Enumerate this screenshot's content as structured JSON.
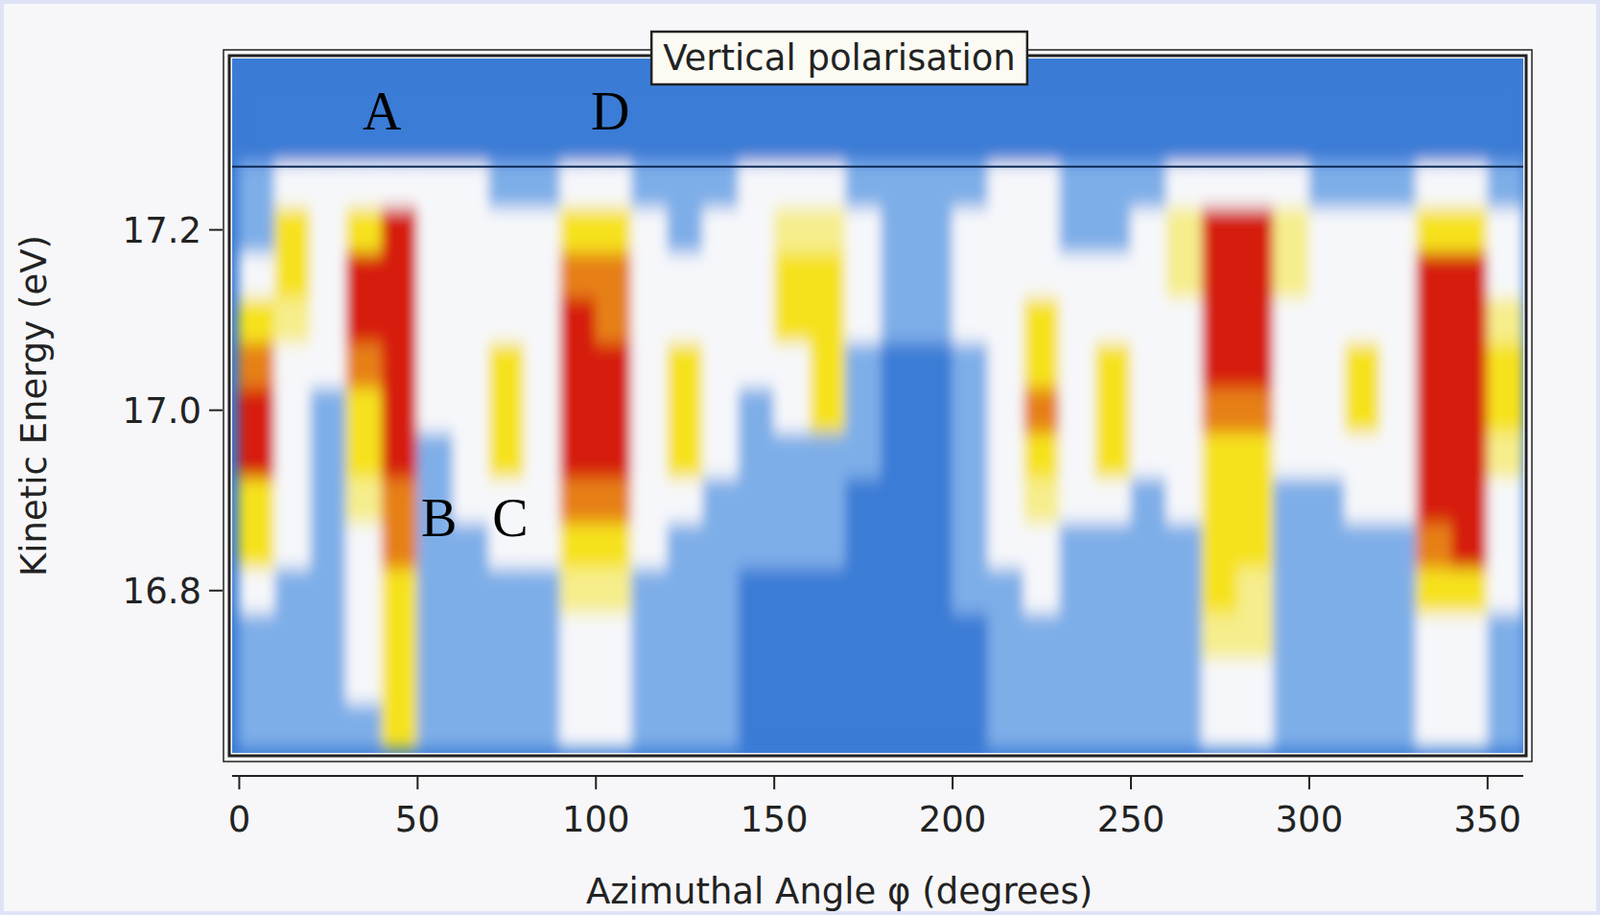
{
  "chart_data": {
    "type": "heatmap",
    "title": "Vertical polarisation",
    "x_label": "Azimuthal Angle φ (degrees)",
    "y_label": "Kinetic Energy (eV)",
    "xlim": [
      -2,
      360
    ],
    "ylim": [
      16.62,
      17.39
    ],
    "xticks": [
      0,
      50,
      100,
      150,
      200,
      250,
      300,
      350
    ],
    "yticks": [
      16.8,
      {
        "value": 17,
        "label": "17.0"
      },
      17.2
    ],
    "zlim": [
      0,
      3
    ],
    "hline": 17.27,
    "x": [
      5,
      15,
      25,
      35,
      45,
      55,
      65,
      75,
      85,
      95,
      105,
      115,
      125,
      135,
      145,
      155,
      165,
      175,
      185,
      195,
      205,
      215,
      225,
      235,
      245,
      255,
      265,
      275,
      285,
      295,
      305,
      315,
      325,
      335,
      345,
      355
    ],
    "y": [
      16.65,
      16.7,
      16.75,
      16.8,
      16.85,
      16.9,
      16.95,
      17.0,
      17.05,
      17.1,
      17.15,
      17.2,
      17.25,
      17.3,
      17.35
    ],
    "values": [
      [
        0.5,
        0.5,
        0.5,
        1,
        2,
        2,
        3,
        3,
        2.5,
        2,
        1,
        0.5,
        0.5,
        0,
        0
      ],
      [
        0.5,
        0.5,
        0.5,
        0.5,
        1,
        1,
        1,
        1,
        1,
        1.5,
        2,
        2,
        1,
        0,
        0
      ],
      [
        0.5,
        0.5,
        0.5,
        0.5,
        0.5,
        0.5,
        0.5,
        0.5,
        1,
        1,
        1,
        1,
        1,
        0,
        0
      ],
      [
        0.5,
        1,
        1,
        1,
        1,
        1.5,
        2,
        2,
        2.5,
        3,
        3,
        2,
        1,
        0,
        0
      ],
      [
        2,
        2,
        2,
        2,
        2.5,
        2.5,
        3,
        3,
        3,
        3,
        3,
        3,
        1,
        0,
        0
      ],
      [
        0.5,
        0.5,
        0.5,
        0.5,
        0.5,
        0.5,
        0.5,
        1,
        1,
        1,
        1,
        1,
        1,
        0,
        0
      ],
      [
        0.5,
        0.5,
        0.5,
        0.5,
        0.5,
        1,
        1,
        1,
        1,
        1,
        1,
        1,
        1,
        0,
        0
      ],
      [
        0.5,
        0.5,
        0.5,
        0.5,
        1,
        1,
        2,
        2,
        2,
        1,
        1,
        1,
        0.5,
        0,
        0
      ],
      [
        0.5,
        0.5,
        0.5,
        0.5,
        1,
        1,
        1,
        1,
        1,
        1,
        1,
        1,
        0.5,
        0,
        0
      ],
      [
        1,
        1,
        1,
        1.5,
        2,
        2.5,
        3,
        3,
        3,
        3,
        2.5,
        2,
        1,
        0,
        0
      ],
      [
        1,
        1,
        1,
        1.5,
        2,
        2.5,
        3,
        3,
        3,
        2.5,
        2.5,
        2,
        1,
        0,
        0
      ],
      [
        0.5,
        0.5,
        0.5,
        0.5,
        1,
        1,
        1,
        1,
        1,
        1,
        1,
        1,
        0.5,
        0,
        0
      ],
      [
        0.5,
        0.5,
        0.5,
        0.5,
        0.5,
        1,
        2,
        2,
        2,
        1,
        1,
        0.5,
        0.5,
        0,
        0
      ],
      [
        0.5,
        0.5,
        0.5,
        0.5,
        0.5,
        0.5,
        1,
        1,
        1,
        1,
        1,
        1,
        0.5,
        0,
        0
      ],
      [
        0,
        0,
        0,
        0,
        0.5,
        0.5,
        0.5,
        0.5,
        1,
        1,
        1,
        1,
        1,
        0,
        0
      ],
      [
        0,
        0,
        0,
        0,
        0.5,
        0.5,
        0.5,
        1,
        1,
        2,
        2,
        1.5,
        1,
        0,
        0
      ],
      [
        0,
        0,
        0,
        0,
        0.5,
        0.5,
        0.5,
        2,
        2,
        2,
        2,
        1.5,
        1,
        0,
        0
      ],
      [
        0,
        0,
        0,
        0,
        0,
        0,
        0.5,
        0.5,
        0.5,
        1,
        1,
        1,
        0.5,
        0,
        0
      ],
      [
        0,
        0,
        0,
        0,
        0,
        0,
        0,
        0,
        0,
        0.5,
        0.5,
        0.5,
        0.5,
        0,
        0
      ],
      [
        0,
        0,
        0,
        0,
        0,
        0,
        0,
        0,
        0,
        0.5,
        0.5,
        0.5,
        0.5,
        0,
        0
      ],
      [
        0,
        0,
        0,
        0.5,
        0.5,
        0.5,
        0.5,
        0.5,
        0.5,
        1,
        1,
        1,
        0.5,
        0,
        0
      ],
      [
        0.5,
        0.5,
        0.5,
        0.5,
        1,
        1,
        1,
        1,
        1,
        1,
        1,
        1,
        1,
        0,
        0
      ],
      [
        0.5,
        0.5,
        0.5,
        1,
        1,
        1.5,
        2,
        2.5,
        2,
        2,
        1,
        1,
        1,
        0,
        0
      ],
      [
        0.5,
        0.5,
        0.5,
        0.5,
        0.5,
        1,
        1,
        1,
        1,
        1,
        1,
        0.5,
        0.5,
        0,
        0
      ],
      [
        0.5,
        0.5,
        0.5,
        0.5,
        0.5,
        1,
        2,
        2,
        2,
        1,
        1,
        0.5,
        0.5,
        0,
        0
      ],
      [
        0.5,
        0.5,
        0.5,
        0.5,
        0.5,
        0.5,
        1,
        1,
        1,
        1,
        1,
        1,
        0.5,
        0,
        0
      ],
      [
        0.5,
        0.5,
        0.5,
        0.5,
        0.5,
        1,
        1,
        1,
        1,
        1,
        1.5,
        1.5,
        1,
        0,
        0
      ],
      [
        1,
        1,
        1.5,
        2,
        2,
        2,
        2,
        2.5,
        3,
        3,
        3,
        3,
        1,
        0,
        0
      ],
      [
        1,
        1,
        1.5,
        1.5,
        2,
        2,
        2,
        2.5,
        3,
        3,
        3,
        3,
        1,
        0,
        0
      ],
      [
        0.5,
        0.5,
        0.5,
        0.5,
        0.5,
        0.5,
        1,
        1,
        1,
        1,
        1.5,
        1.5,
        1,
        0,
        0
      ],
      [
        0.5,
        0.5,
        0.5,
        0.5,
        0.5,
        0.5,
        1,
        1,
        1,
        1,
        1,
        1,
        0.5,
        0,
        0
      ],
      [
        0.5,
        0.5,
        0.5,
        0.5,
        0.5,
        1,
        1,
        2,
        2,
        1,
        1,
        1,
        0.5,
        0,
        0
      ],
      [
        0.5,
        0.5,
        0.5,
        0.5,
        0.5,
        1,
        1,
        1,
        1,
        1,
        1,
        1,
        0.5,
        0,
        0
      ],
      [
        1,
        1,
        1,
        2,
        2.5,
        3,
        3,
        3,
        3,
        3,
        3,
        2,
        1,
        0,
        0
      ],
      [
        1,
        1,
        1,
        2,
        3,
        3,
        3,
        3,
        3,
        3,
        3,
        2,
        1,
        0,
        0
      ],
      [
        0.5,
        0.5,
        0.5,
        1,
        1,
        1,
        1.5,
        2,
        2,
        1.5,
        1,
        1,
        0.5,
        0,
        0
      ]
    ],
    "annotations": [
      {
        "text": "A",
        "x": 40,
        "y": 17.33
      },
      {
        "text": "D",
        "x": 104,
        "y": 17.33
      },
      {
        "text": "B",
        "x": 56,
        "y": 16.88
      },
      {
        "text": "C",
        "x": 76,
        "y": 16.88
      }
    ]
  }
}
